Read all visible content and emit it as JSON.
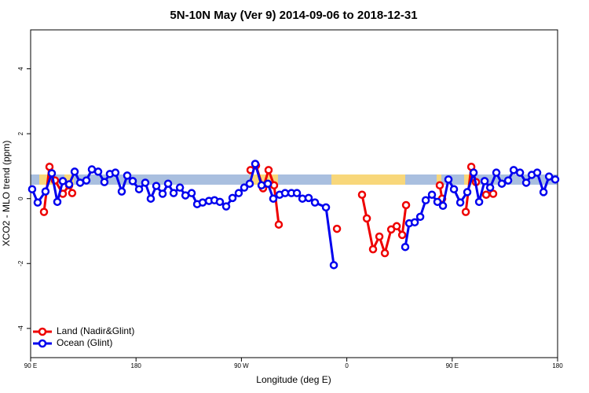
{
  "chart_data": {
    "type": "line",
    "title": "5N-10N May (Ver 9)   2014-09-06 to 2018-12-31",
    "x_label": "Longitude (deg E)",
    "y_label": "XCO2 - MLO trend (ppm)",
    "xlim": [
      90,
      540
    ],
    "ylim": [
      -4.9,
      5.2
    ],
    "xticks": [
      {
        "value": 90,
        "label": "90 E"
      },
      180,
      {
        "value": 270,
        "label": "90 W"
      },
      {
        "value": 360,
        "label": "0"
      },
      {
        "value": 450,
        "label": "90 E"
      },
      {
        "value": 540,
        "label": "180"
      }
    ],
    "yticks": [
      -4,
      -2,
      0,
      2,
      4
    ],
    "legend_position": "bottom-left",
    "series": [
      {
        "name": "Land (Nadir&Glint)",
        "color": "#ee0000",
        "x": [
          101.4,
          106.1,
          110.8,
          117.5,
          122.9,
          125.5,
          null,
          277.8,
          282.5,
          288.5,
          293.2,
          297.9,
          301.9,
          null,
          351.6,
          null,
          373.0,
          377.1,
          382.4,
          387.8,
          392.5,
          397.9,
          402.6,
          407.3,
          410.6,
          null,
          439.4,
          441.4,
          null,
          461.6,
          466.3,
          470.3,
          null,
          479.0,
          485.0
        ],
        "values": [
          -0.41,
          0.98,
          0.56,
          0.15,
          0.41,
          0.17,
          null,
          0.88,
          1.02,
          0.32,
          0.88,
          0.41,
          -0.8,
          null,
          -0.93,
          null,
          0.12,
          -0.61,
          -1.56,
          -1.17,
          -1.68,
          -0.95,
          -0.85,
          -1.12,
          -0.2,
          null,
          0.41,
          0.0,
          null,
          -0.41,
          0.98,
          0.51,
          null,
          0.12,
          0.15
        ]
      },
      {
        "name": "Ocean (Glint)",
        "color": "#0000ee",
        "x": [
          91.3,
          96.0,
          102.7,
          108.1,
          112.8,
          117.5,
          122.9,
          127.6,
          132.3,
          137.6,
          142.3,
          147.7,
          153.0,
          157.7,
          162.4,
          167.8,
          172.5,
          177.2,
          182.6,
          187.9,
          192.6,
          197.3,
          202.7,
          207.4,
          212.1,
          217.5,
          222.2,
          227.5,
          232.2,
          236.9,
          242.3,
          247.0,
          251.6,
          257.0,
          262.4,
          267.7,
          272.4,
          277.1,
          281.8,
          287.2,
          292.6,
          297.2,
          302.6,
          307.3,
          312.7,
          317.4,
          322.1,
          327.4,
          332.8,
          342.2,
          348.9,
          null,
          409.9,
          413.3,
          418.0,
          422.7,
          427.4,
          432.7,
          437.4,
          442.1,
          446.8,
          451.5,
          456.9,
          462.9,
          468.3,
          473.0,
          477.7,
          482.4,
          487.7,
          492.4,
          497.8,
          502.5,
          507.9,
          513.2,
          517.9,
          522.6,
          528.0,
          532.7,
          538.0
        ],
        "values": [
          0.29,
          -0.12,
          0.22,
          0.78,
          -0.1,
          0.54,
          0.44,
          0.83,
          0.49,
          0.56,
          0.9,
          0.83,
          0.51,
          0.76,
          0.8,
          0.22,
          0.71,
          0.54,
          0.29,
          0.49,
          0.0,
          0.39,
          0.15,
          0.46,
          0.17,
          0.34,
          0.1,
          0.17,
          -0.17,
          -0.12,
          -0.07,
          -0.05,
          -0.1,
          -0.24,
          0.02,
          0.17,
          0.34,
          0.46,
          1.07,
          0.41,
          0.46,
          0.0,
          0.12,
          0.17,
          0.17,
          0.17,
          0.0,
          0.02,
          -0.12,
          -0.27,
          -2.05,
          null,
          -1.49,
          -0.76,
          -0.73,
          -0.56,
          -0.05,
          0.12,
          -0.1,
          -0.22,
          0.59,
          0.29,
          -0.12,
          0.2,
          0.8,
          -0.1,
          0.54,
          0.34,
          0.8,
          0.46,
          0.56,
          0.88,
          0.8,
          0.49,
          0.73,
          0.8,
          0.2,
          0.68,
          0.59
        ]
      }
    ]
  }
}
